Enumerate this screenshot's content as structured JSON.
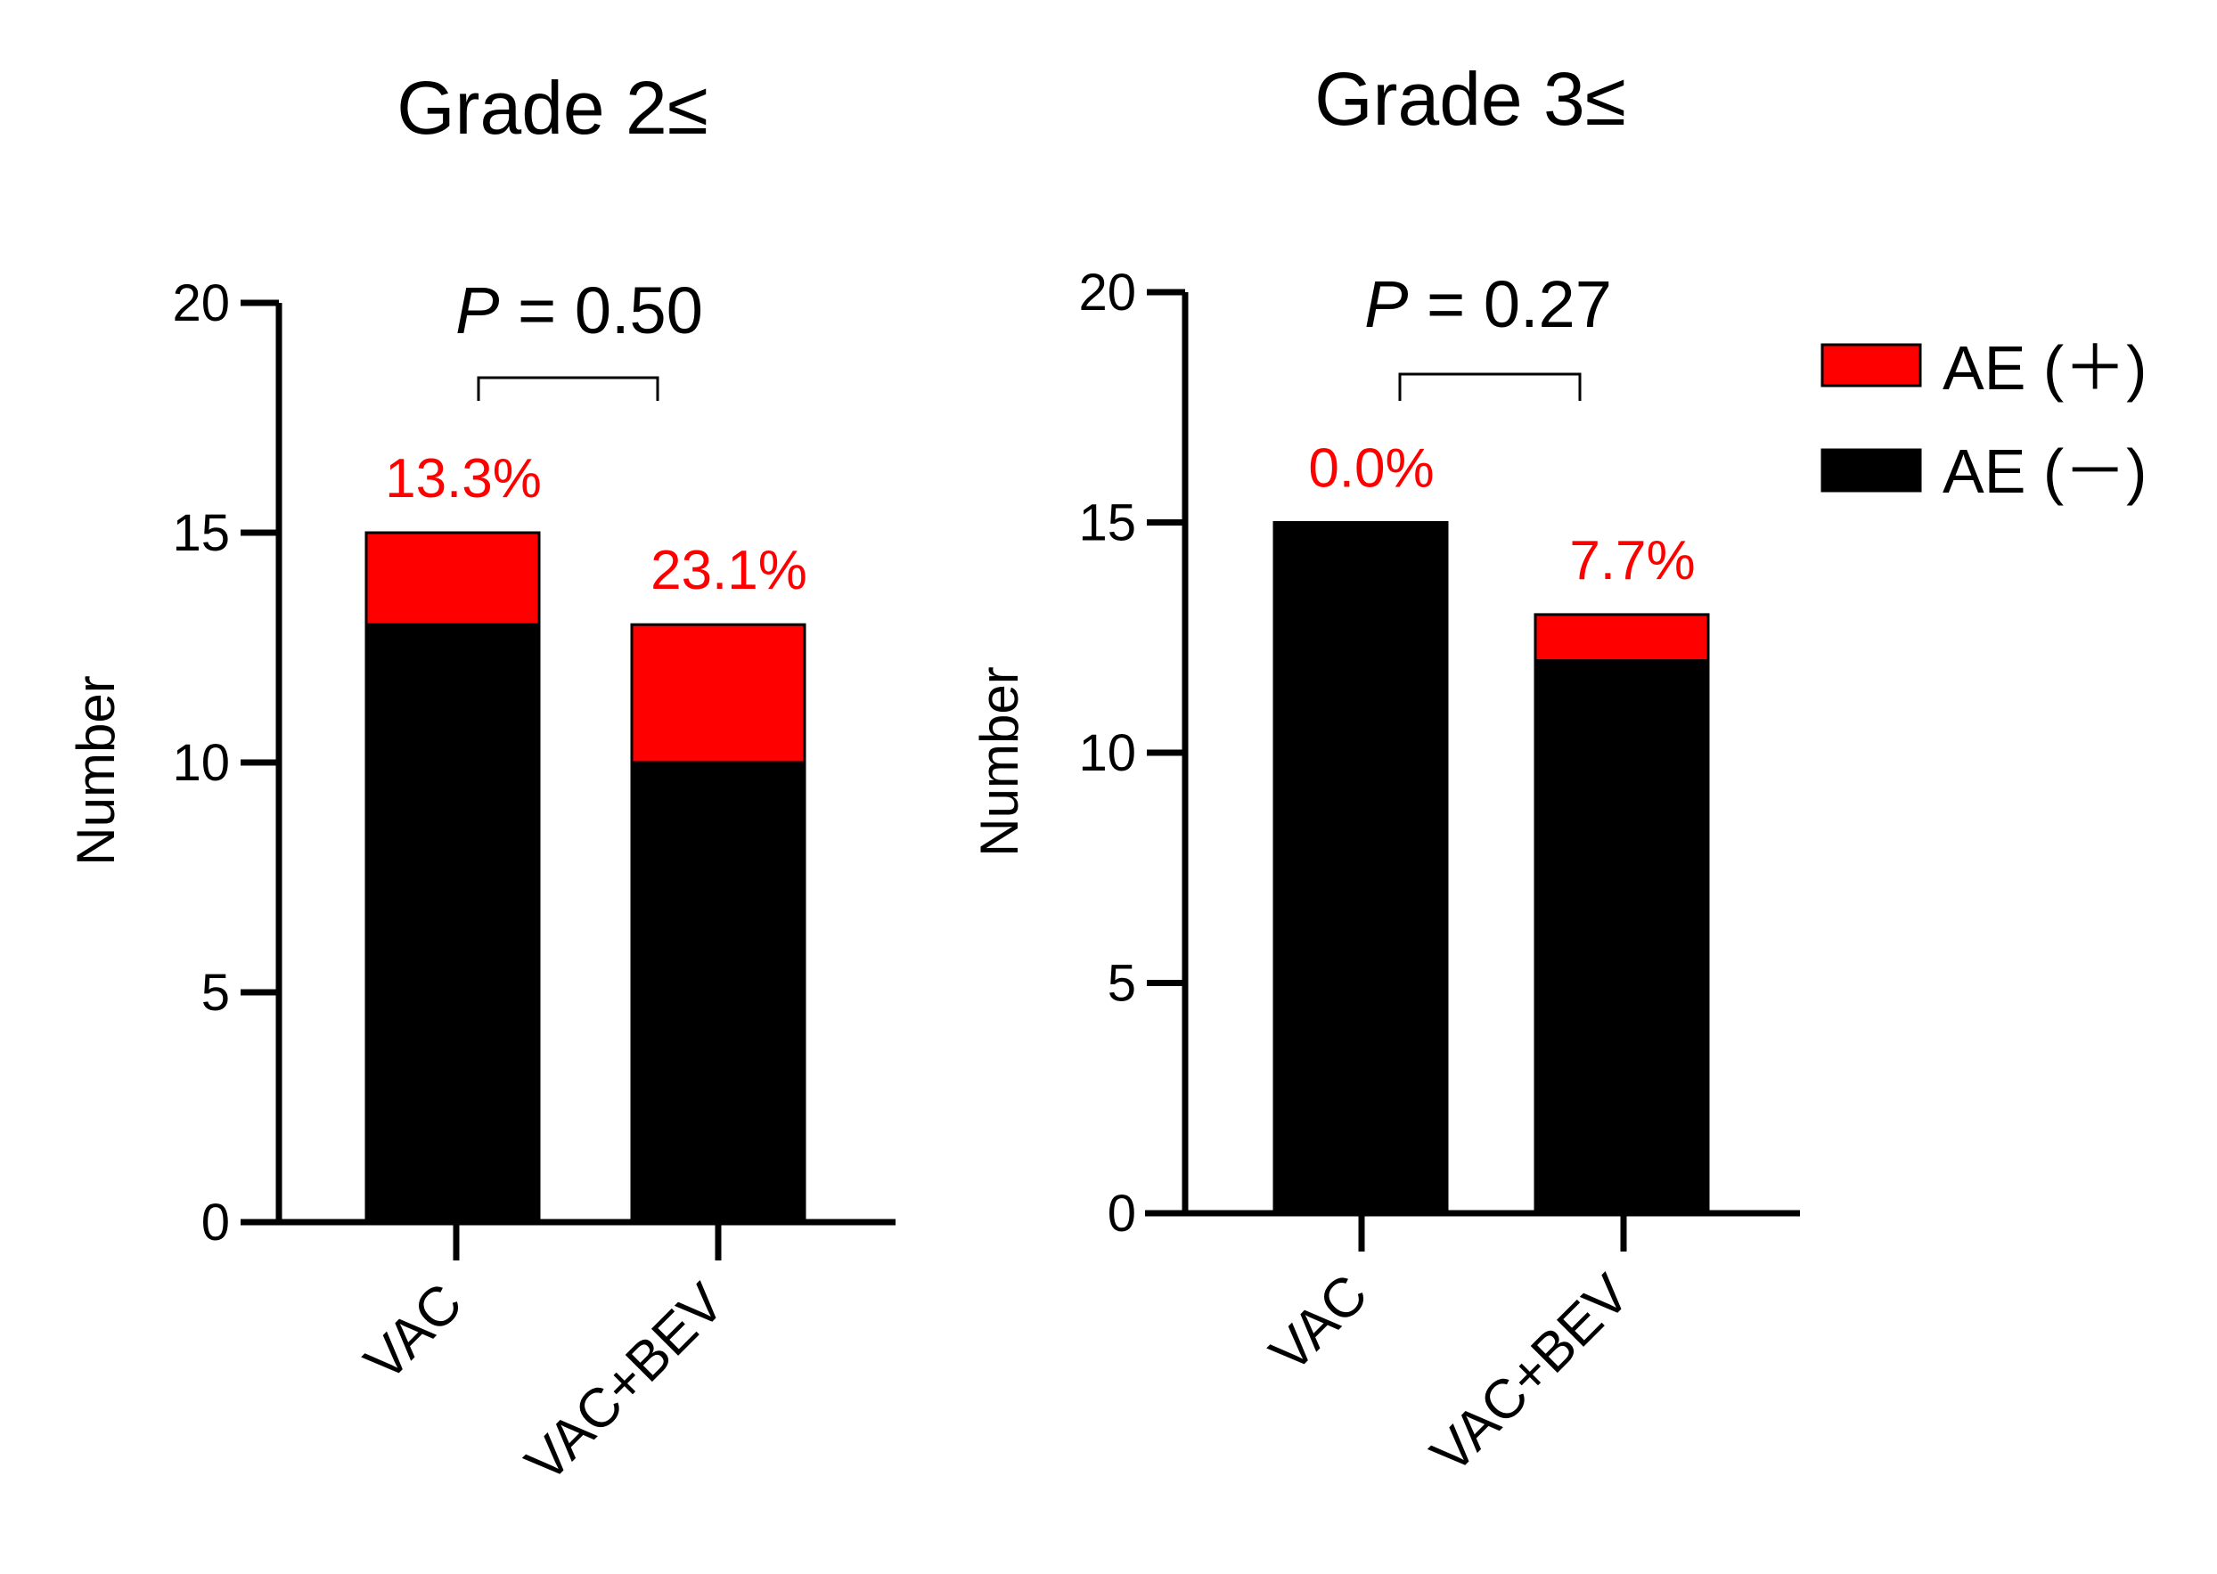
{
  "legend": {
    "items": [
      {
        "label": "AE (＋)",
        "color": "#ff0000"
      },
      {
        "label": "AE (－)",
        "color": "#000000"
      }
    ]
  },
  "chart_data": [
    {
      "type": "bar",
      "stacked": true,
      "title": "Grade 2≤",
      "xlabel": "",
      "ylabel": "Number",
      "ylim": [
        0,
        20
      ],
      "yticks": [
        "0",
        "5",
        "10",
        "15",
        "20"
      ],
      "categories": [
        "VAC",
        "VAC+BEV"
      ],
      "series": [
        {
          "name": "AE (－)",
          "color": "#000000",
          "values": [
            13,
            10
          ]
        },
        {
          "name": "AE (＋)",
          "color": "#ff0000",
          "values": [
            2,
            3
          ]
        }
      ],
      "percent_labels": [
        "13.3%",
        "23.1%"
      ],
      "p_prefix": "P",
      "p_value": " = 0.50"
    },
    {
      "type": "bar",
      "stacked": true,
      "title": "Grade 3≤",
      "xlabel": "",
      "ylabel": "Number",
      "ylim": [
        0,
        20
      ],
      "yticks": [
        "0",
        "5",
        "10",
        "15",
        "20"
      ],
      "categories": [
        "VAC",
        "VAC+BEV"
      ],
      "series": [
        {
          "name": "AE (－)",
          "color": "#000000",
          "values": [
            15,
            12
          ]
        },
        {
          "name": "AE (＋)",
          "color": "#ff0000",
          "values": [
            0,
            1
          ]
        }
      ],
      "percent_labels": [
        "0.0%",
        "7.7%"
      ],
      "p_prefix": "P",
      "p_value": " = 0.27"
    }
  ]
}
